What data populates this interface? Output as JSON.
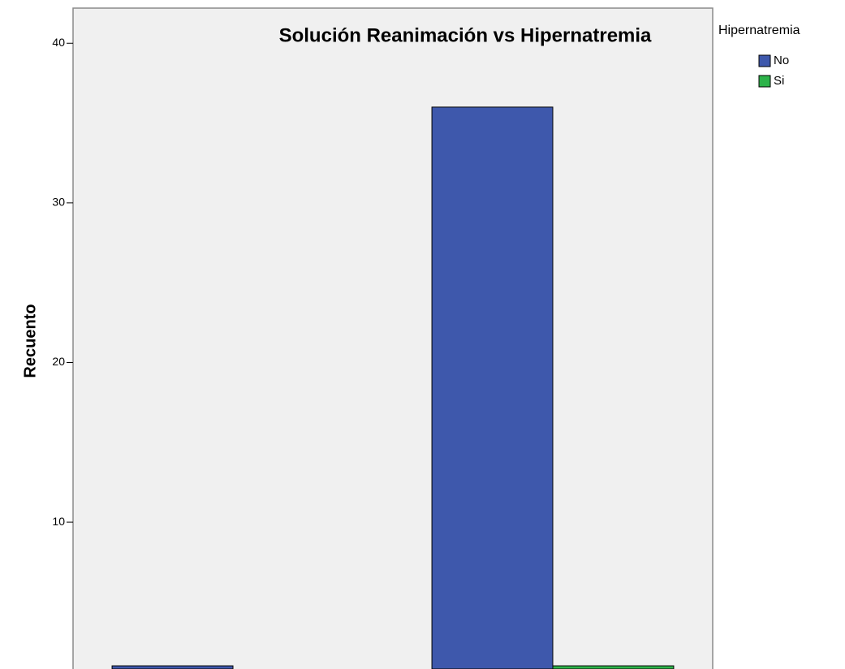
{
  "chart_data": {
    "type": "bar",
    "title": "Solución Reanimación vs Hipernatremia",
    "y_label": "Recuento",
    "legend_title": "Hipernatremia",
    "categories": [
      null,
      null
    ],
    "series": [
      {
        "name": "No",
        "color": "#3e58ac",
        "values": [
          1,
          36
        ]
      },
      {
        "name": "Si",
        "color": "#2db34a",
        "values": [
          0,
          1
        ]
      }
    ],
    "ylim": [
      0.8,
      42.2
    ],
    "yticks": [
      10,
      20,
      30,
      40
    ],
    "legend": "right"
  }
}
